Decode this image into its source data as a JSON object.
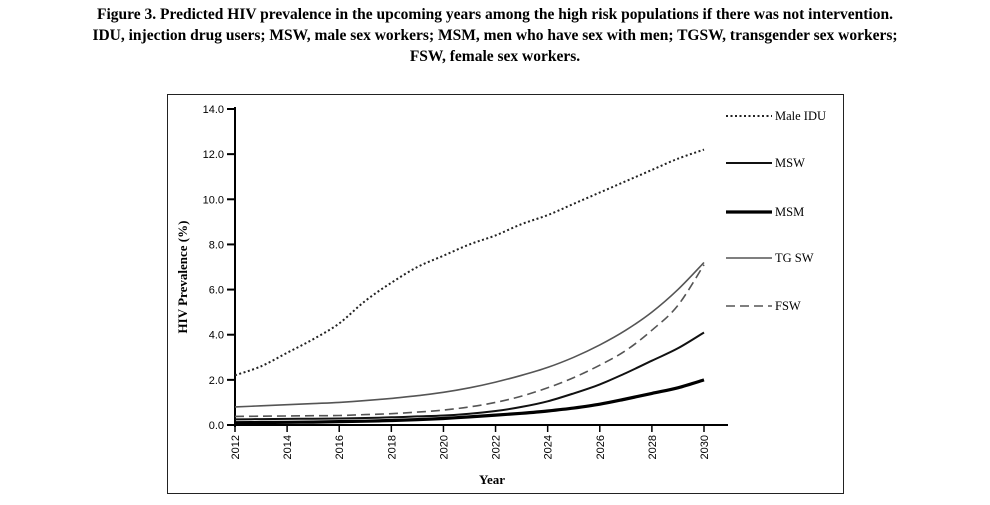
{
  "caption": {
    "line1": "Figure 3. Predicted HIV prevalence in the upcoming years among the high risk populations if there was not intervention.",
    "line2": "IDU, injection drug users; MSW, male sex workers; MSM, men who have sex with men; TGSW, transgender sex workers;",
    "line3": "FSW, female sex workers."
  },
  "chart_data": {
    "type": "line",
    "title": "",
    "xlabel": "Year",
    "ylabel": "HIV Prevalence (%)",
    "xlim": [
      2012,
      2030
    ],
    "ylim": [
      0,
      14
    ],
    "x_ticks": [
      "2012",
      "2014",
      "2016",
      "2018",
      "2020",
      "2022",
      "2024",
      "2026",
      "2028",
      "2030"
    ],
    "y_ticks": [
      "0.0",
      "2.0",
      "4.0",
      "6.0",
      "8.0",
      "10.0",
      "12.0",
      "14.0"
    ],
    "grid": false,
    "legend_position": "right",
    "x": [
      2012,
      2013,
      2014,
      2015,
      2016,
      2017,
      2018,
      2019,
      2020,
      2021,
      2022,
      2023,
      2024,
      2025,
      2026,
      2027,
      2028,
      2029,
      2030
    ],
    "series": [
      {
        "name": "Male IDU",
        "style": "dotted",
        "color": "#222222",
        "values": [
          2.2,
          2.6,
          3.2,
          3.8,
          4.5,
          5.5,
          6.3,
          7.0,
          7.5,
          8.0,
          8.4,
          8.9,
          9.3,
          9.8,
          10.3,
          10.8,
          11.3,
          11.8,
          12.2
        ]
      },
      {
        "name": "MSW",
        "style": "solid",
        "color": "#111111",
        "values": [
          0.25,
          0.26,
          0.27,
          0.28,
          0.29,
          0.31,
          0.34,
          0.38,
          0.42,
          0.5,
          0.62,
          0.8,
          1.05,
          1.4,
          1.8,
          2.3,
          2.85,
          3.4,
          4.1
        ]
      },
      {
        "name": "MSM",
        "style": "thick",
        "color": "#000000",
        "values": [
          0.1,
          0.11,
          0.12,
          0.13,
          0.15,
          0.17,
          0.2,
          0.24,
          0.29,
          0.36,
          0.44,
          0.52,
          0.62,
          0.75,
          0.92,
          1.15,
          1.4,
          1.65,
          2.0
        ]
      },
      {
        "name": "TG SW",
        "style": "solid",
        "color": "#555555",
        "values": [
          0.8,
          0.85,
          0.9,
          0.95,
          1.0,
          1.08,
          1.18,
          1.3,
          1.45,
          1.65,
          1.9,
          2.2,
          2.55,
          3.0,
          3.55,
          4.2,
          5.0,
          6.0,
          7.2
        ]
      },
      {
        "name": "FSW",
        "style": "dashed",
        "color": "#555555",
        "values": [
          0.38,
          0.39,
          0.4,
          0.41,
          0.42,
          0.46,
          0.5,
          0.57,
          0.66,
          0.8,
          1.0,
          1.28,
          1.65,
          2.1,
          2.65,
          3.3,
          4.2,
          5.3,
          7.1
        ]
      }
    ]
  }
}
